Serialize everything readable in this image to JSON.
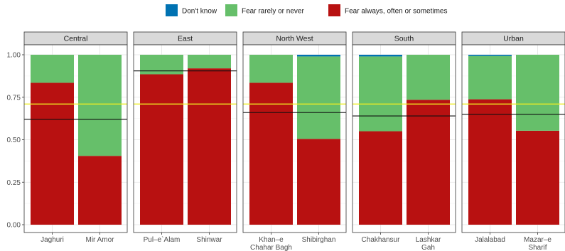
{
  "chart_data": {
    "type": "bar",
    "stacked": true,
    "ylim": [
      0,
      1
    ],
    "yticks": [
      "0.00",
      "0.25",
      "0.50",
      "0.75",
      "1.00"
    ],
    "ytick_values": [
      0,
      0.25,
      0.5,
      0.75,
      1.0
    ],
    "legend_position": "top",
    "grid": true,
    "series": [
      {
        "key": "dk",
        "name": "Don't know",
        "color": "#0072B2"
      },
      {
        "key": "rare",
        "name": "Fear rarely or never",
        "color": "#66BF6A"
      },
      {
        "key": "always",
        "name": "Fear always, often or sometimes",
        "color": "#B81111"
      }
    ],
    "overall_line": {
      "value": 0.71,
      "color": "#EEEE22"
    },
    "panels": [
      {
        "name": "Central",
        "region_mean": 0.62,
        "bars": [
          {
            "label": [
              "Jaghuri"
            ],
            "always": 0.835,
            "rare": 0.165,
            "dk": 0.0
          },
          {
            "label": [
              "Mir Amor"
            ],
            "always": 0.405,
            "rare": 0.595,
            "dk": 0.0
          }
        ]
      },
      {
        "name": "East",
        "region_mean": 0.905,
        "bars": [
          {
            "label": [
              "Pul–e`Alam"
            ],
            "always": 0.885,
            "rare": 0.115,
            "dk": 0.0
          },
          {
            "label": [
              "Shinwar"
            ],
            "always": 0.92,
            "rare": 0.08,
            "dk": 0.0
          }
        ]
      },
      {
        "name": "North West",
        "region_mean": 0.66,
        "bars": [
          {
            "label": [
              "Khan–e",
              "Chahar Bagh"
            ],
            "always": 0.835,
            "rare": 0.165,
            "dk": 0.0
          },
          {
            "label": [
              "Shibirghan"
            ],
            "always": 0.505,
            "rare": 0.485,
            "dk": 0.01
          }
        ]
      },
      {
        "name": "South",
        "region_mean": 0.64,
        "bars": [
          {
            "label": [
              "Chakhansur"
            ],
            "always": 0.55,
            "rare": 0.44,
            "dk": 0.01
          },
          {
            "label": [
              "Lashkar",
              "Gah"
            ],
            "always": 0.735,
            "rare": 0.265,
            "dk": 0.0
          }
        ]
      },
      {
        "name": "Urban",
        "region_mean": 0.65,
        "bars": [
          {
            "label": [
              "Jalalabad"
            ],
            "always": 0.738,
            "rare": 0.255,
            "dk": 0.007
          },
          {
            "label": [
              "Mazar–e",
              "Sharif"
            ],
            "always": 0.553,
            "rare": 0.447,
            "dk": 0.0
          }
        ]
      }
    ]
  }
}
